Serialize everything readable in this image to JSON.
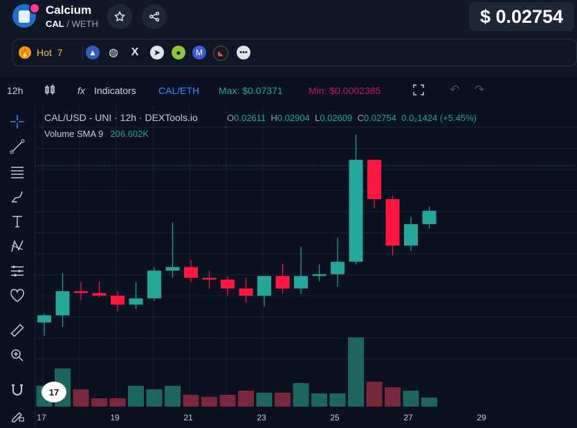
{
  "token": {
    "name": "Calcium",
    "symbol": "CAL",
    "quote_sep": "/",
    "quote": "WETH",
    "price": "$ 0.02754"
  },
  "header_buttons": [
    "star-icon",
    "share-icon"
  ],
  "links": {
    "hot_label": "Hot",
    "hot_rank": "7",
    "icons": [
      "chart-icon",
      "globe-icon",
      "x-icon",
      "telegram-icon",
      "coingecko-icon",
      "coinmarketcap-icon",
      "dextools-icon",
      "more-icon"
    ]
  },
  "toolbar": {
    "interval": "12h",
    "indicators_label": "Indicators",
    "pair_label": "CAL/ETH",
    "max_label": "Max: $0.07371",
    "min_label": "Min: $0.0002385"
  },
  "legend": {
    "title": "CAL/USD - UNI · 12h · DEXTools.io",
    "o_label": "O",
    "o": "0.02611",
    "h_label": "H",
    "h": "0.02904",
    "l_label": "L",
    "l": "0.02609",
    "c_label": "C",
    "c": "0.02754",
    "change": "0.0₂1424 (+5.45%)",
    "vol_label": "Volume SMA 9",
    "vol_value": "206.602K"
  },
  "chart_data": {
    "type": "candlestick",
    "x_ticks": [
      "17",
      "19",
      "21",
      "23",
      "25",
      "27",
      "29"
    ],
    "candles": [
      {
        "o": 0.01,
        "h": 0.011,
        "l": 0.0085,
        "c": 0.0108
      },
      {
        "o": 0.0108,
        "h": 0.0155,
        "l": 0.0095,
        "c": 0.0135
      },
      {
        "o": 0.0135,
        "h": 0.0145,
        "l": 0.0125,
        "c": 0.0133
      },
      {
        "o": 0.0133,
        "h": 0.0146,
        "l": 0.0128,
        "c": 0.013
      },
      {
        "o": 0.013,
        "h": 0.0135,
        "l": 0.0112,
        "c": 0.012
      },
      {
        "o": 0.012,
        "h": 0.0145,
        "l": 0.0115,
        "c": 0.0127
      },
      {
        "o": 0.0127,
        "h": 0.0162,
        "l": 0.0124,
        "c": 0.0158
      },
      {
        "o": 0.0158,
        "h": 0.0212,
        "l": 0.015,
        "c": 0.0162
      },
      {
        "o": 0.0162,
        "h": 0.017,
        "l": 0.0145,
        "c": 0.015
      },
      {
        "o": 0.015,
        "h": 0.0158,
        "l": 0.0138,
        "c": 0.0148
      },
      {
        "o": 0.0148,
        "h": 0.0152,
        "l": 0.013,
        "c": 0.0138
      },
      {
        "o": 0.0138,
        "h": 0.015,
        "l": 0.0122,
        "c": 0.013
      },
      {
        "o": 0.013,
        "h": 0.0152,
        "l": 0.0118,
        "c": 0.0152
      },
      {
        "o": 0.0152,
        "h": 0.0166,
        "l": 0.0132,
        "c": 0.0138
      },
      {
        "o": 0.0138,
        "h": 0.0185,
        "l": 0.0132,
        "c": 0.0152
      },
      {
        "o": 0.0152,
        "h": 0.0165,
        "l": 0.0146,
        "c": 0.0154
      },
      {
        "o": 0.0154,
        "h": 0.0195,
        "l": 0.014,
        "c": 0.0168
      },
      {
        "o": 0.0168,
        "h": 0.031,
        "l": 0.0165,
        "c": 0.0282
      },
      {
        "o": 0.0282,
        "h": 0.0282,
        "l": 0.0228,
        "c": 0.0238
      },
      {
        "o": 0.0238,
        "h": 0.0242,
        "l": 0.0175,
        "c": 0.0186
      },
      {
        "o": 0.0186,
        "h": 0.0218,
        "l": 0.018,
        "c": 0.021
      },
      {
        "o": 0.021,
        "h": 0.023,
        "l": 0.0205,
        "c": 0.0225
      }
    ],
    "current_price": 0.02754,
    "volumes": [
      30,
      55,
      25,
      12,
      12,
      30,
      25,
      30,
      17,
      14,
      17,
      23,
      20,
      20,
      34,
      19,
      19,
      100,
      36,
      28,
      23,
      13
    ]
  }
}
